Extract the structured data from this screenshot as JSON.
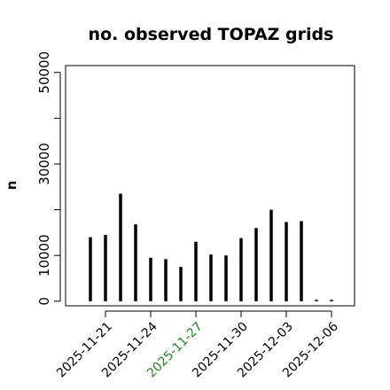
{
  "chart_data": {
    "type": "bar",
    "title": "no. observed TOPAZ grids",
    "xlabel": "",
    "ylabel": "n",
    "x": [
      "2025-11-20",
      "2025-11-21",
      "2025-11-22",
      "2025-11-23",
      "2025-11-24",
      "2025-11-25",
      "2025-11-26",
      "2025-11-27",
      "2025-11-28",
      "2025-11-29",
      "2025-11-30",
      "2025-12-01",
      "2025-12-02",
      "2025-12-03",
      "2025-12-04",
      "2025-12-05",
      "2025-12-06"
    ],
    "values": [
      14000,
      14500,
      23500,
      16800,
      9500,
      9200,
      7500,
      13000,
      10200,
      10000,
      13800,
      16000,
      20000,
      17300,
      17500,
      300,
      300
    ],
    "x_ticks": [
      "2025-11-21",
      "2025-11-24",
      "2025-11-27",
      "2025-11-30",
      "2025-12-03",
      "2025-12-06"
    ],
    "x_tick_colors": [
      "#000000",
      "#000000",
      "#228B22",
      "#000000",
      "#000000",
      "#000000"
    ],
    "y_ticks": [
      0,
      10000,
      30000,
      50000
    ],
    "y_minor_ticks": [
      20000,
      40000
    ],
    "ylim": [
      -1000,
      51500
    ],
    "bar_color": "#000000",
    "grid": false,
    "legend": "none"
  }
}
